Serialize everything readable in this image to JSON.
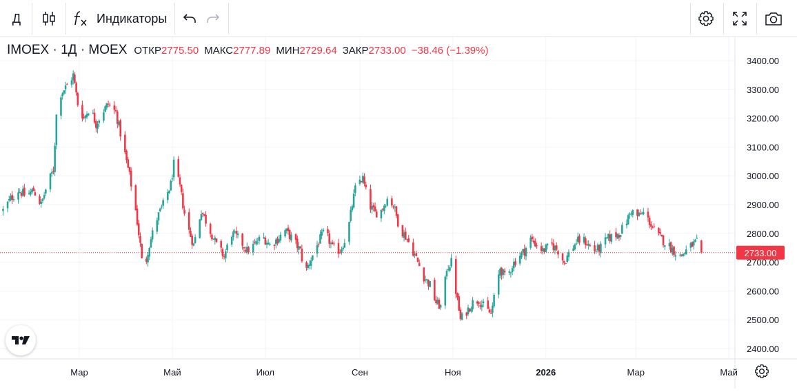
{
  "toolbar": {
    "interval_label": "Д",
    "indicators_label": "Индикаторы",
    "icons": [
      "candles-icon",
      "fx-icon",
      "undo-icon",
      "redo-icon",
      "gear-icon",
      "fullscreen-icon",
      "camera-icon"
    ]
  },
  "legend": {
    "symbol": "IMOEX · 1Д · MOEX",
    "open_label": "ОТКР",
    "open_value": "2775.50",
    "high_label": "МАКС",
    "high_value": "2777.89",
    "low_label": "МИН",
    "low_value": "2729.64",
    "close_label": "ЗАКР",
    "close_value": "2733.00",
    "change_value": "−38.46 (−1.39%)"
  },
  "colors": {
    "up": "#26a69a",
    "down": "#f23645",
    "grid": "#f0f3fa",
    "axis_text": "#131722"
  },
  "chart_data": {
    "type": "candlestick",
    "price_axis_ticks": [
      "3400.00",
      "3300.00",
      "3200.00",
      "3100.00",
      "3000.00",
      "2900.00",
      "2800.00",
      "2700.00",
      "2600.00",
      "2500.00",
      "2400.00"
    ],
    "time_axis_labels": [
      {
        "label": "Мар",
        "bold": false
      },
      {
        "label": "Май",
        "bold": false
      },
      {
        "label": "Июл",
        "bold": false
      },
      {
        "label": "Сен",
        "bold": false
      },
      {
        "label": "Ноя",
        "bold": false
      },
      {
        "label": "2026",
        "bold": true
      },
      {
        "label": "Мар",
        "bold": false
      },
      {
        "label": "Май",
        "bold": false
      }
    ],
    "ylim": [
      2380,
      3485
    ],
    "x_range": [
      "2025-01-08",
      "2026-05-05"
    ],
    "last_price": "2733.00",
    "closes": [
      [
        "2025-01-10",
        2880
      ],
      [
        "2025-01-15",
        2920
      ],
      [
        "2025-01-20",
        2950
      ],
      [
        "2025-01-25",
        2930
      ],
      [
        "2025-01-30",
        2950
      ],
      [
        "2025-02-04",
        2900
      ],
      [
        "2025-02-08",
        2970
      ],
      [
        "2025-02-12",
        3020
      ],
      [
        "2025-02-14",
        3210
      ],
      [
        "2025-02-16",
        3280
      ],
      [
        "2025-02-19",
        3300
      ],
      [
        "2025-02-22",
        3320
      ],
      [
        "2025-02-25",
        3350
      ],
      [
        "2025-02-28",
        3250
      ],
      [
        "2025-03-04",
        3200
      ],
      [
        "2025-03-08",
        3240
      ],
      [
        "2025-03-12",
        3180
      ],
      [
        "2025-03-16",
        3220
      ],
      [
        "2025-03-20",
        3250
      ],
      [
        "2025-03-25",
        3220
      ],
      [
        "2025-03-30",
        3100
      ],
      [
        "2025-04-03",
        3000
      ],
      [
        "2025-04-07",
        2880
      ],
      [
        "2025-04-10",
        2760
      ],
      [
        "2025-04-12",
        2650
      ],
      [
        "2025-04-15",
        2740
      ],
      [
        "2025-04-20",
        2840
      ],
      [
        "2025-04-25",
        2900
      ],
      [
        "2025-04-30",
        2970
      ],
      [
        "2025-05-02",
        3040
      ],
      [
        "2025-05-06",
        2960
      ],
      [
        "2025-05-10",
        2840
      ],
      [
        "2025-05-15",
        2760
      ],
      [
        "2025-05-20",
        2880
      ],
      [
        "2025-05-25",
        2820
      ],
      [
        "2025-05-30",
        2760
      ],
      [
        "2025-06-04",
        2720
      ],
      [
        "2025-06-09",
        2800
      ],
      [
        "2025-06-14",
        2780
      ],
      [
        "2025-06-19",
        2740
      ],
      [
        "2025-06-24",
        2760
      ],
      [
        "2025-06-29",
        2790
      ],
      [
        "2025-07-04",
        2760
      ],
      [
        "2025-07-09",
        2780
      ],
      [
        "2025-07-14",
        2810
      ],
      [
        "2025-07-19",
        2780
      ],
      [
        "2025-07-24",
        2740
      ],
      [
        "2025-07-27",
        2660
      ],
      [
        "2025-07-30",
        2700
      ],
      [
        "2025-08-04",
        2760
      ],
      [
        "2025-08-09",
        2810
      ],
      [
        "2025-08-14",
        2750
      ],
      [
        "2025-08-19",
        2740
      ],
      [
        "2025-08-24",
        2800
      ],
      [
        "2025-08-27",
        2900
      ],
      [
        "2025-08-30",
        2980
      ],
      [
        "2025-09-03",
        2990
      ],
      [
        "2025-09-07",
        2900
      ],
      [
        "2025-09-11",
        2870
      ],
      [
        "2025-09-15",
        2880
      ],
      [
        "2025-09-19",
        2920
      ],
      [
        "2025-09-23",
        2900
      ],
      [
        "2025-09-27",
        2820
      ],
      [
        "2025-10-01",
        2790
      ],
      [
        "2025-10-05",
        2750
      ],
      [
        "2025-10-09",
        2700
      ],
      [
        "2025-10-13",
        2650
      ],
      [
        "2025-10-17",
        2620
      ],
      [
        "2025-10-21",
        2560
      ],
      [
        "2025-10-25",
        2540
      ],
      [
        "2025-10-28",
        2680
      ],
      [
        "2025-10-31",
        2700
      ],
      [
        "2025-11-03",
        2600
      ],
      [
        "2025-11-06",
        2500
      ],
      [
        "2025-11-10",
        2530
      ],
      [
        "2025-11-14",
        2560
      ],
      [
        "2025-11-18",
        2570
      ],
      [
        "2025-11-22",
        2540
      ],
      [
        "2025-11-26",
        2520
      ],
      [
        "2025-11-29",
        2600
      ],
      [
        "2025-12-02",
        2680
      ],
      [
        "2025-12-06",
        2640
      ],
      [
        "2025-12-10",
        2690
      ],
      [
        "2025-12-14",
        2720
      ],
      [
        "2025-12-18",
        2740
      ],
      [
        "2025-12-22",
        2780
      ],
      [
        "2025-12-26",
        2760
      ],
      [
        "2025-12-30",
        2740
      ],
      [
        "2026-01-05",
        2760
      ],
      [
        "2026-01-09",
        2740
      ],
      [
        "2026-01-13",
        2700
      ],
      [
        "2026-01-17",
        2740
      ],
      [
        "2026-01-21",
        2770
      ],
      [
        "2026-01-25",
        2780
      ],
      [
        "2026-01-29",
        2760
      ],
      [
        "2026-02-02",
        2740
      ],
      [
        "2026-02-06",
        2750
      ],
      [
        "2026-02-10",
        2780
      ],
      [
        "2026-02-14",
        2790
      ],
      [
        "2026-02-18",
        2800
      ],
      [
        "2026-02-22",
        2830
      ],
      [
        "2026-02-26",
        2880
      ],
      [
        "2026-03-02",
        2860
      ],
      [
        "2026-03-06",
        2870
      ],
      [
        "2026-03-10",
        2840
      ],
      [
        "2026-03-14",
        2800
      ],
      [
        "2026-03-18",
        2780
      ],
      [
        "2026-03-22",
        2760
      ],
      [
        "2026-03-26",
        2740
      ],
      [
        "2026-03-30",
        2720
      ],
      [
        "2026-04-03",
        2740
      ],
      [
        "2026-04-07",
        2760
      ],
      [
        "2026-04-10",
        2770
      ],
      [
        "2026-04-13",
        2733
      ]
    ]
  }
}
